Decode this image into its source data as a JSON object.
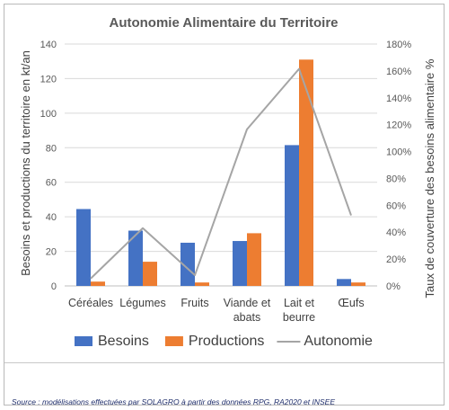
{
  "chart_data": {
    "type": "bar",
    "title": "Autonomie Alimentaire du Territoire",
    "categories": [
      [
        "Céréales"
      ],
      [
        "Légumes"
      ],
      [
        "Fruits"
      ],
      [
        "Viande et",
        "abats"
      ],
      [
        "Lait et",
        "beurre"
      ],
      [
        "Œufs"
      ]
    ],
    "series": [
      {
        "name": "Besoins",
        "type": "bar",
        "axis": "left",
        "color": "#4472c4",
        "values": [
          44.5,
          32,
          25,
          26,
          81.5,
          4
        ]
      },
      {
        "name": "Productions",
        "type": "bar",
        "axis": "left",
        "color": "#ed7d31",
        "values": [
          2.5,
          14,
          2,
          30.5,
          131,
          2
        ]
      },
      {
        "name": "Autonomie",
        "type": "line",
        "axis": "right",
        "color": "#a5a5a5",
        "values": [
          0.055,
          0.43,
          0.08,
          1.165,
          1.615,
          0.525
        ]
      }
    ],
    "ylabel": "Besoins et productions du territoire en kt/an",
    "ylabel_right": "Taux de couverture des besoins alimentaire %",
    "ylim": [
      0,
      140
    ],
    "yticks": [
      "0",
      "20",
      "40",
      "60",
      "80",
      "100",
      "120",
      "140"
    ],
    "ylim_right": [
      0,
      1.8
    ],
    "yticks_right": [
      "0%",
      "20%",
      "40%",
      "60%",
      "80%",
      "100%",
      "120%",
      "140%",
      "160%",
      "180%"
    ],
    "grid": true,
    "legend_position": "bottom"
  },
  "source": "Source : modélisations effectuées par SOLAGRO à partir des données RPG, RA2020 et INSEE"
}
